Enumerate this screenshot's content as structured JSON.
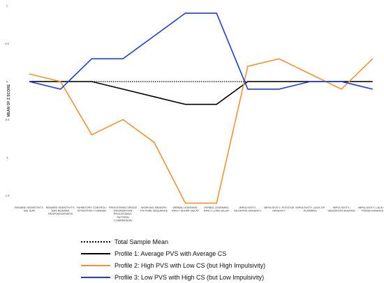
{
  "chart_data": {
    "type": "line",
    "ylabel": "MEAN OF Z SCORE",
    "ylim": [
      -1.5,
      1.0
    ],
    "yticks": [
      {
        "value": 1,
        "label": "1"
      },
      {
        "value": 0.5,
        "label": "0.5"
      },
      {
        "value": 0,
        "label": "0"
      },
      {
        "value": -0.5,
        "label": "-0.5"
      },
      {
        "value": -1,
        "label": "-1"
      },
      {
        "value": -1.5,
        "label": "-1.5"
      }
    ],
    "categories": [
      [
        "REWARD SENSITIVITY-",
        "BIS SUM"
      ],
      [
        "REWARD SENSITIVITY-",
        "BAS REWARD",
        "RESPONSIVENESS"
      ],
      [
        "INHIBITORY CONTROL/",
        "ATTENTION- FLANKER"
      ],
      [
        "PROCESSING SPEED/",
        "INFORMATION",
        "PROCESSING-",
        "PATTERN",
        "COMPARISON"
      ],
      [
        "WORKING MEMORY-",
        "PICTURE SEQUENCE"
      ],
      [
        "VERBAL LEARNING-",
        "RAVLT SHORT DELAY"
      ],
      [
        "VERBAL LEARNING-",
        "RAVLT LONG DELAY"
      ],
      [
        "IMPULSIVITY-",
        "NEGATIVE URGENCY"
      ],
      [
        "IMPULSIVITY- POSITIVE",
        "URGENCY"
      ],
      [
        "IMPULSIVITY- LACK OF",
        "PLANNING"
      ],
      [
        "IMPULSIVITY-",
        "SENSATION SEEKING"
      ],
      [
        "IMPULSIVITY- LACK OF",
        "PERSEVERANCE"
      ]
    ],
    "series": [
      {
        "name": "Total Sample Mean",
        "color": "#000000",
        "style": "dotted",
        "values": [
          0,
          0,
          0,
          0,
          0,
          0,
          0,
          0,
          0,
          0,
          0,
          0
        ]
      },
      {
        "name": "Profile 1: Average PVS with Average CS",
        "color": "#000000",
        "style": "solid",
        "values": [
          0,
          0,
          0,
          -0.1,
          -0.2,
          -0.3,
          -0.3,
          0,
          0,
          0,
          0,
          0
        ]
      },
      {
        "name": "Profile 2: High PVS with Low CS (but High Impulsivity)",
        "color": "#F5922F",
        "style": "solid",
        "values": [
          0.1,
          0,
          -0.7,
          -0.5,
          -0.8,
          -1.6,
          -1.6,
          0.2,
          0.3,
          0.1,
          -0.1,
          0.3
        ]
      },
      {
        "name": "Profile 3: Low PVS with High CS (but Low Impulsivity)",
        "color": "#1F3BE0",
        "style": "solid",
        "values": [
          0,
          -0.1,
          0.3,
          0.3,
          0.6,
          0.9,
          0.9,
          -0.1,
          -0.1,
          0,
          0,
          -0.1
        ]
      }
    ],
    "grid": false,
    "legend_position": "bottom"
  }
}
